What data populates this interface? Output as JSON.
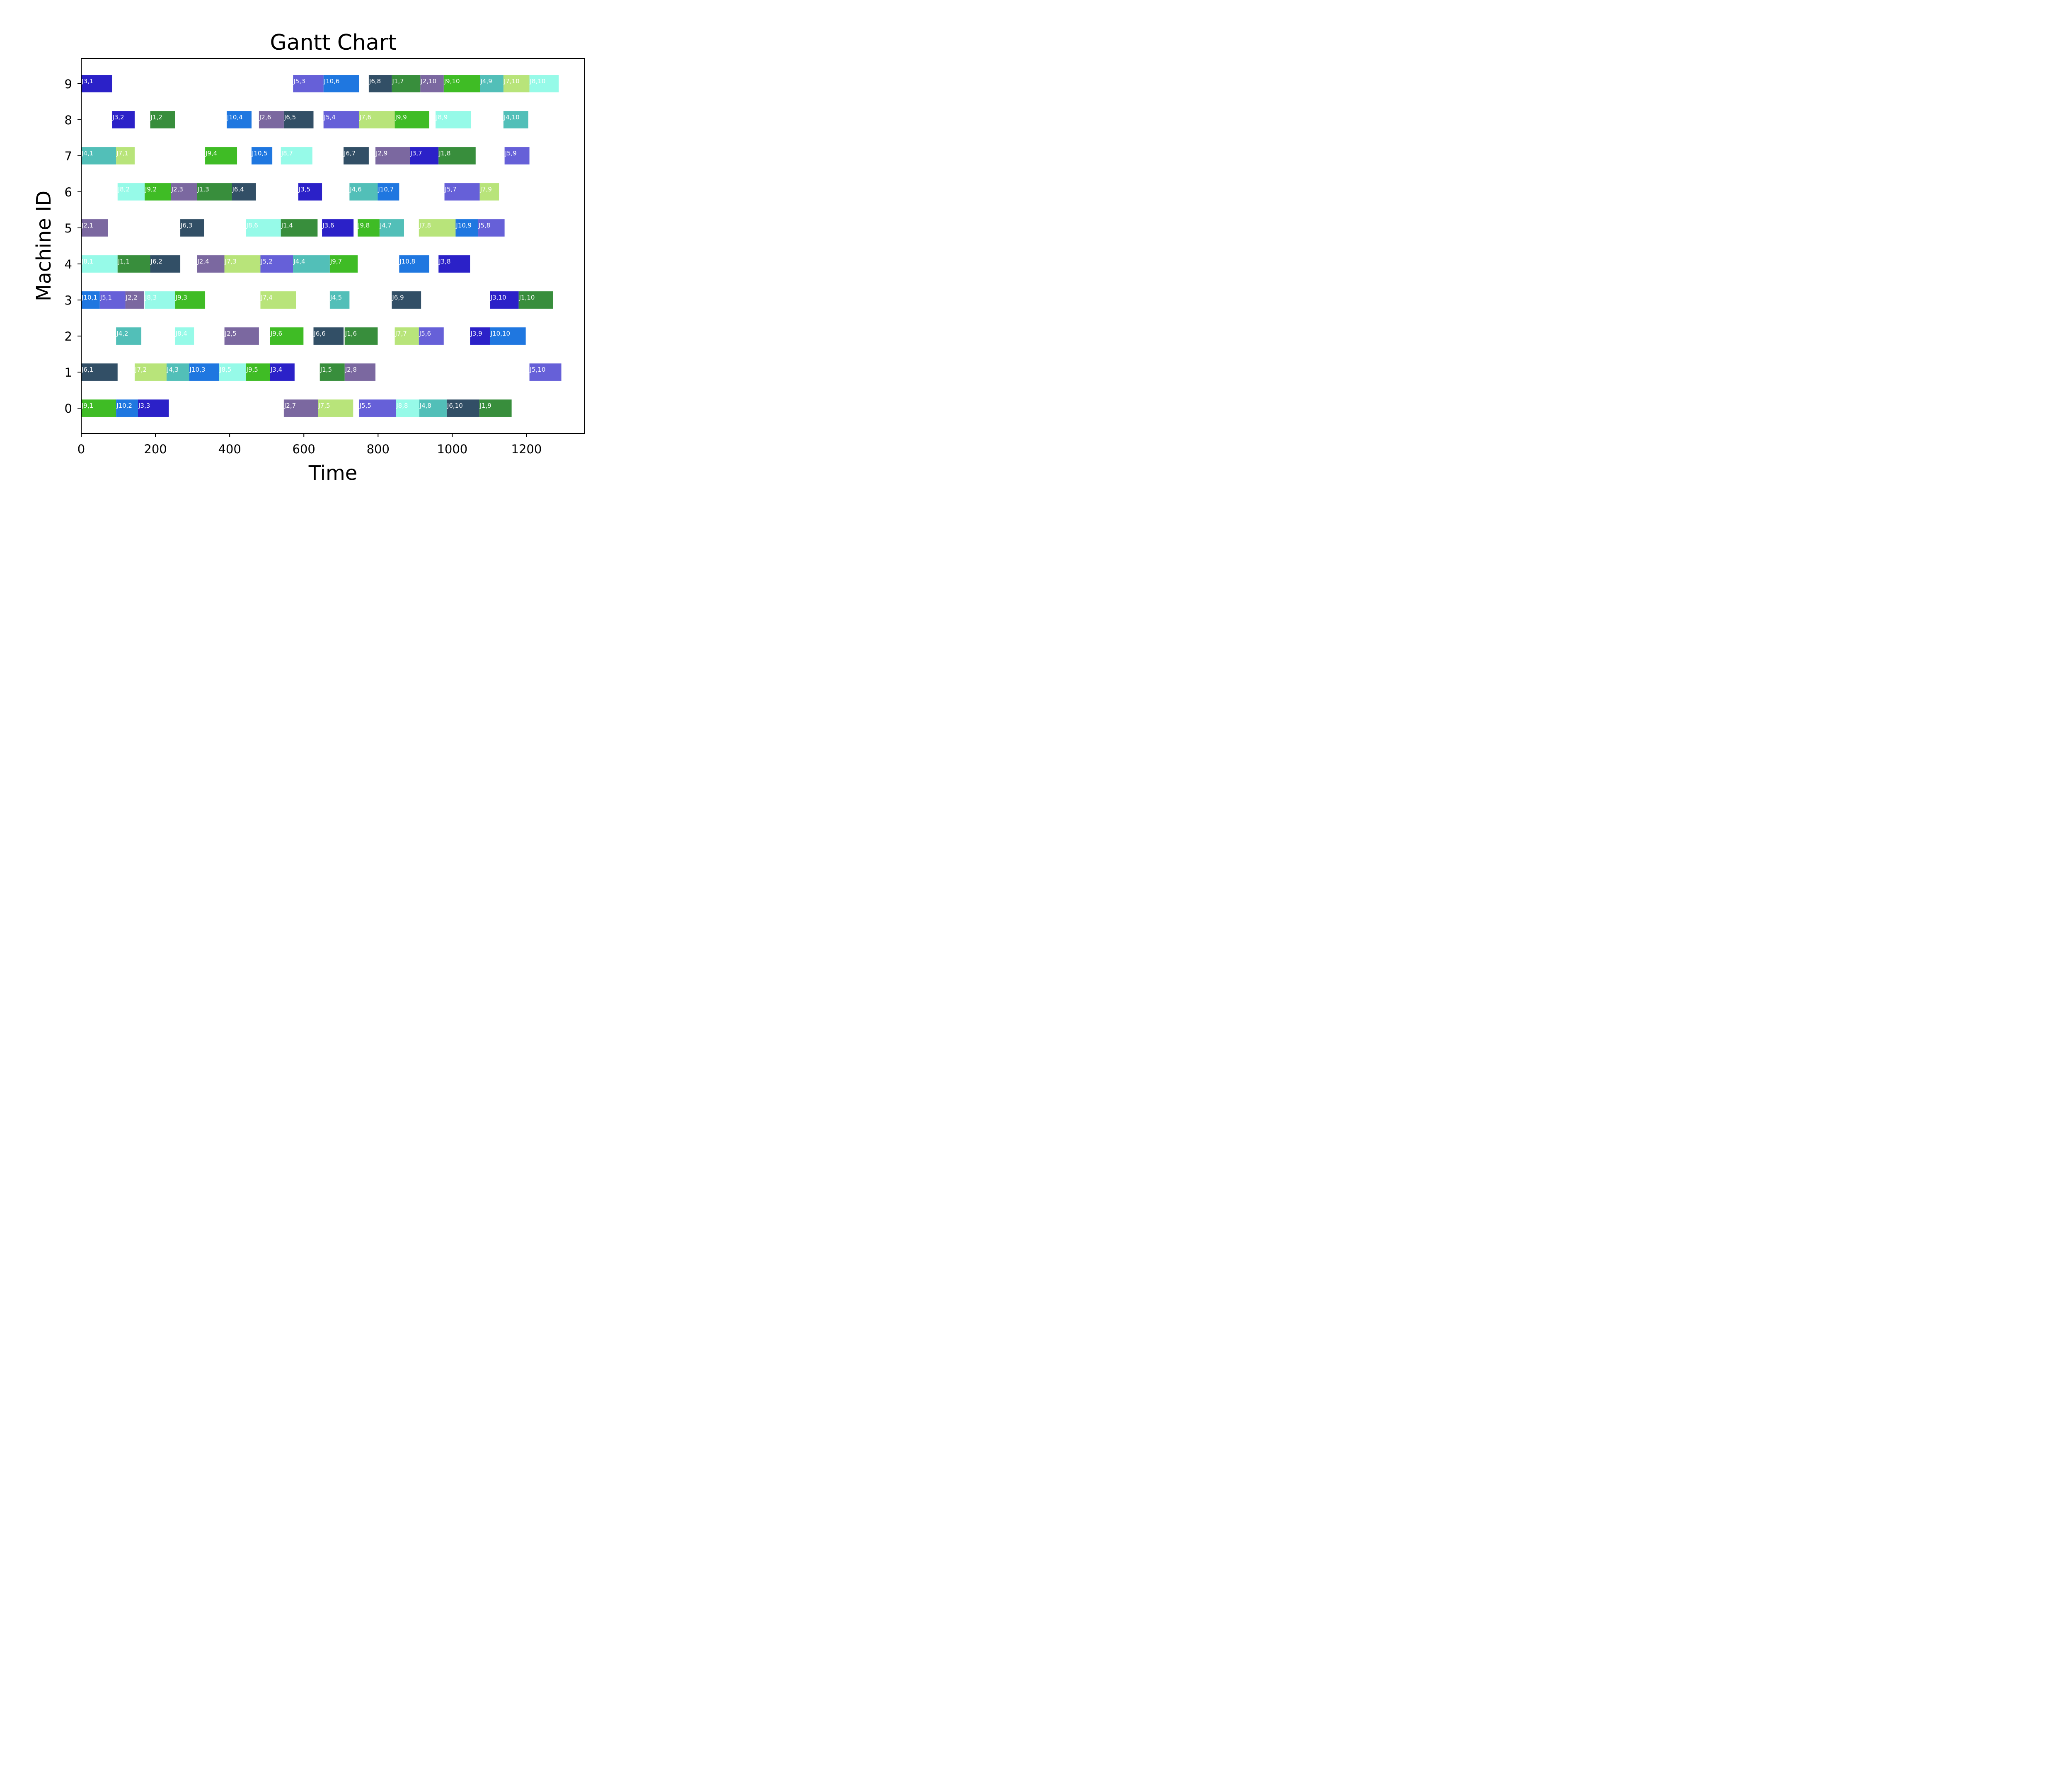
{
  "chart_data": {
    "type": "gantt",
    "title": "Gantt Chart",
    "xlabel": "Time",
    "ylabel": "Machine ID",
    "xlim": [
      0,
      1357
    ],
    "ylim": [
      -0.7,
      9.7
    ],
    "xticks": [
      0,
      200,
      400,
      600,
      800,
      1000,
      1200
    ],
    "yticks": [
      0,
      1,
      2,
      3,
      4,
      5,
      6,
      7,
      8,
      9
    ],
    "grid": false,
    "job_colors": {
      "J1": "#388e3c",
      "J2": "#7b68a0",
      "J3": "#2b21c8",
      "J4": "#52bfb8",
      "J5": "#6660d8",
      "J6": "#324f66",
      "J7": "#b8e47a",
      "J8": "#96fae8",
      "J9": "#3fbc25",
      "J10": "#1f77e0"
    },
    "tasks": [
      {
        "machine": 9,
        "job": "J3",
        "label": "J3,1",
        "start": 0,
        "end": 83
      },
      {
        "machine": 9,
        "job": "J5",
        "label": "J5,3",
        "start": 571,
        "end": 653
      },
      {
        "machine": 9,
        "job": "J10",
        "label": "J10,6",
        "start": 653,
        "end": 749
      },
      {
        "machine": 9,
        "job": "J6",
        "label": "J6,8",
        "start": 775,
        "end": 837
      },
      {
        "machine": 9,
        "job": "J1",
        "label": "J1,7",
        "start": 837,
        "end": 914
      },
      {
        "machine": 9,
        "job": "J2",
        "label": "J2,10",
        "start": 914,
        "end": 977
      },
      {
        "machine": 9,
        "job": "J9",
        "label": "J9,10",
        "start": 977,
        "end": 1075
      },
      {
        "machine": 9,
        "job": "J4",
        "label": "J4,9",
        "start": 1075,
        "end": 1138
      },
      {
        "machine": 9,
        "job": "J7",
        "label": "J7,10",
        "start": 1138,
        "end": 1208
      },
      {
        "machine": 9,
        "job": "J8",
        "label": "J8,10",
        "start": 1208,
        "end": 1287
      },
      {
        "machine": 8,
        "job": "J3",
        "label": "J3,2",
        "start": 83,
        "end": 144
      },
      {
        "machine": 8,
        "job": "J1",
        "label": "J1,2",
        "start": 186,
        "end": 253
      },
      {
        "machine": 8,
        "job": "J10",
        "label": "J10,4",
        "start": 392,
        "end": 459
      },
      {
        "machine": 8,
        "job": "J2",
        "label": "J2,6",
        "start": 479,
        "end": 546
      },
      {
        "machine": 8,
        "job": "J6",
        "label": "J6,5",
        "start": 546,
        "end": 626
      },
      {
        "machine": 8,
        "job": "J5",
        "label": "J5,4",
        "start": 653,
        "end": 749
      },
      {
        "machine": 8,
        "job": "J7",
        "label": "J7,6",
        "start": 749,
        "end": 845
      },
      {
        "machine": 8,
        "job": "J9",
        "label": "J9,9",
        "start": 845,
        "end": 938
      },
      {
        "machine": 8,
        "job": "J8",
        "label": "J8,9",
        "start": 955,
        "end": 1051
      },
      {
        "machine": 8,
        "job": "J4",
        "label": "J4,10",
        "start": 1138,
        "end": 1205
      },
      {
        "machine": 7,
        "job": "J4",
        "label": "J4,1",
        "start": 0,
        "end": 94
      },
      {
        "machine": 7,
        "job": "J7",
        "label": "J7,1",
        "start": 94,
        "end": 144
      },
      {
        "machine": 7,
        "job": "J9",
        "label": "J9,4",
        "start": 334,
        "end": 420
      },
      {
        "machine": 7,
        "job": "J10",
        "label": "J10,5",
        "start": 459,
        "end": 515
      },
      {
        "machine": 7,
        "job": "J8",
        "label": "J8,7",
        "start": 538,
        "end": 623
      },
      {
        "machine": 7,
        "job": "J6",
        "label": "J6,7",
        "start": 707,
        "end": 775
      },
      {
        "machine": 7,
        "job": "J2",
        "label": "J2,9",
        "start": 793,
        "end": 886
      },
      {
        "machine": 7,
        "job": "J3",
        "label": "J3,7",
        "start": 886,
        "end": 963
      },
      {
        "machine": 7,
        "job": "J1",
        "label": "J1,8",
        "start": 963,
        "end": 1063
      },
      {
        "machine": 7,
        "job": "J5",
        "label": "J5,9",
        "start": 1141,
        "end": 1208
      },
      {
        "machine": 6,
        "job": "J8",
        "label": "J8,2",
        "start": 98,
        "end": 171
      },
      {
        "machine": 6,
        "job": "J9",
        "label": "J9,2",
        "start": 171,
        "end": 242
      },
      {
        "machine": 6,
        "job": "J2",
        "label": "J2,3",
        "start": 242,
        "end": 312
      },
      {
        "machine": 6,
        "job": "J1",
        "label": "J1,3",
        "start": 312,
        "end": 406
      },
      {
        "machine": 6,
        "job": "J6",
        "label": "J6,4",
        "start": 406,
        "end": 471
      },
      {
        "machine": 6,
        "job": "J3",
        "label": "J3,5",
        "start": 585,
        "end": 649
      },
      {
        "machine": 6,
        "job": "J4",
        "label": "J4,6",
        "start": 723,
        "end": 799
      },
      {
        "machine": 6,
        "job": "J10",
        "label": "J10,7",
        "start": 799,
        "end": 857
      },
      {
        "machine": 6,
        "job": "J5",
        "label": "J5,7",
        "start": 979,
        "end": 1074
      },
      {
        "machine": 6,
        "job": "J7",
        "label": "J7,9",
        "start": 1074,
        "end": 1126
      },
      {
        "machine": 5,
        "job": "J2",
        "label": "J2,1",
        "start": 0,
        "end": 72
      },
      {
        "machine": 5,
        "job": "J6",
        "label": "J6,3",
        "start": 267,
        "end": 331
      },
      {
        "machine": 5,
        "job": "J8",
        "label": "J8,6",
        "start": 444,
        "end": 538
      },
      {
        "machine": 5,
        "job": "J1",
        "label": "J1,4",
        "start": 538,
        "end": 637
      },
      {
        "machine": 5,
        "job": "J3",
        "label": "J3,6",
        "start": 649,
        "end": 734
      },
      {
        "machine": 5,
        "job": "J9",
        "label": "J9,8",
        "start": 745,
        "end": 804
      },
      {
        "machine": 5,
        "job": "J4",
        "label": "J4,7",
        "start": 804,
        "end": 870
      },
      {
        "machine": 5,
        "job": "J7",
        "label": "J7,8",
        "start": 910,
        "end": 1009
      },
      {
        "machine": 5,
        "job": "J10",
        "label": "J10,9",
        "start": 1009,
        "end": 1070
      },
      {
        "machine": 5,
        "job": "J5",
        "label": "J5,8",
        "start": 1070,
        "end": 1141
      },
      {
        "machine": 4,
        "job": "J8",
        "label": "J8,1",
        "start": 0,
        "end": 98
      },
      {
        "machine": 4,
        "job": "J1",
        "label": "J1,1",
        "start": 98,
        "end": 186
      },
      {
        "machine": 4,
        "job": "J6",
        "label": "J6,2",
        "start": 186,
        "end": 267
      },
      {
        "machine": 4,
        "job": "J2",
        "label": "J2,4",
        "start": 312,
        "end": 386
      },
      {
        "machine": 4,
        "job": "J7",
        "label": "J7,3",
        "start": 386,
        "end": 483
      },
      {
        "machine": 4,
        "job": "J5",
        "label": "J5,2",
        "start": 483,
        "end": 571
      },
      {
        "machine": 4,
        "job": "J4",
        "label": "J4,4",
        "start": 571,
        "end": 670
      },
      {
        "machine": 4,
        "job": "J9",
        "label": "J9,7",
        "start": 670,
        "end": 745
      },
      {
        "machine": 4,
        "job": "J10",
        "label": "J10,8",
        "start": 857,
        "end": 938
      },
      {
        "machine": 4,
        "job": "J3",
        "label": "J3,8",
        "start": 963,
        "end": 1048
      },
      {
        "machine": 3,
        "job": "J10",
        "label": "J10,1",
        "start": 0,
        "end": 50
      },
      {
        "machine": 3,
        "job": "J5",
        "label": "J5,1",
        "start": 50,
        "end": 119
      },
      {
        "machine": 3,
        "job": "J2",
        "label": "J2,2",
        "start": 119,
        "end": 169
      },
      {
        "machine": 3,
        "job": "J8",
        "label": "J8,3",
        "start": 171,
        "end": 253
      },
      {
        "machine": 3,
        "job": "J9",
        "label": "J9,3",
        "start": 253,
        "end": 334
      },
      {
        "machine": 3,
        "job": "J7",
        "label": "J7,4",
        "start": 483,
        "end": 579
      },
      {
        "machine": 3,
        "job": "J4",
        "label": "J4,5",
        "start": 670,
        "end": 723
      },
      {
        "machine": 3,
        "job": "J6",
        "label": "J6,9",
        "start": 837,
        "end": 916
      },
      {
        "machine": 3,
        "job": "J3",
        "label": "J3,10",
        "start": 1102,
        "end": 1179
      },
      {
        "machine": 3,
        "job": "J1",
        "label": "J1,10",
        "start": 1179,
        "end": 1271
      },
      {
        "machine": 2,
        "job": "J4",
        "label": "J4,2",
        "start": 94,
        "end": 162
      },
      {
        "machine": 2,
        "job": "J8",
        "label": "J8,4",
        "start": 253,
        "end": 304
      },
      {
        "machine": 2,
        "job": "J2",
        "label": "J2,5",
        "start": 386,
        "end": 479
      },
      {
        "machine": 2,
        "job": "J9",
        "label": "J9,6",
        "start": 509,
        "end": 599
      },
      {
        "machine": 2,
        "job": "J6",
        "label": "J6,6",
        "start": 626,
        "end": 707
      },
      {
        "machine": 2,
        "job": "J1",
        "label": "J1,6",
        "start": 710,
        "end": 799
      },
      {
        "machine": 2,
        "job": "J7",
        "label": "J7,7",
        "start": 845,
        "end": 910
      },
      {
        "machine": 2,
        "job": "J5",
        "label": "J5,6",
        "start": 910,
        "end": 977
      },
      {
        "machine": 2,
        "job": "J3",
        "label": "J3,9",
        "start": 1048,
        "end": 1102
      },
      {
        "machine": 2,
        "job": "J10",
        "label": "J10,10",
        "start": 1102,
        "end": 1198
      },
      {
        "machine": 1,
        "job": "J6",
        "label": "J6,1",
        "start": 0,
        "end": 98
      },
      {
        "machine": 1,
        "job": "J7",
        "label": "J7,2",
        "start": 144,
        "end": 230
      },
      {
        "machine": 1,
        "job": "J4",
        "label": "J4,3",
        "start": 230,
        "end": 291
      },
      {
        "machine": 1,
        "job": "J10",
        "label": "J10,3",
        "start": 291,
        "end": 372
      },
      {
        "machine": 1,
        "job": "J8",
        "label": "J8,5",
        "start": 372,
        "end": 444
      },
      {
        "machine": 1,
        "job": "J9",
        "label": "J9,5",
        "start": 444,
        "end": 509
      },
      {
        "machine": 1,
        "job": "J3",
        "label": "J3,4",
        "start": 509,
        "end": 575
      },
      {
        "machine": 1,
        "job": "J1",
        "label": "J1,5",
        "start": 643,
        "end": 710
      },
      {
        "machine": 1,
        "job": "J2",
        "label": "J2,8",
        "start": 710,
        "end": 793
      },
      {
        "machine": 1,
        "job": "J5",
        "label": "J5,10",
        "start": 1208,
        "end": 1294
      },
      {
        "machine": 0,
        "job": "J9",
        "label": "J9,1",
        "start": 0,
        "end": 94
      },
      {
        "machine": 0,
        "job": "J10",
        "label": "J10,2",
        "start": 94,
        "end": 153
      },
      {
        "machine": 0,
        "job": "J3",
        "label": "J3,3",
        "start": 153,
        "end": 236
      },
      {
        "machine": 0,
        "job": "J2",
        "label": "J2,7",
        "start": 546,
        "end": 638
      },
      {
        "machine": 0,
        "job": "J7",
        "label": "J7,5",
        "start": 638,
        "end": 733
      },
      {
        "machine": 0,
        "job": "J5",
        "label": "J5,5",
        "start": 749,
        "end": 848
      },
      {
        "machine": 0,
        "job": "J8",
        "label": "J8,8",
        "start": 848,
        "end": 911
      },
      {
        "machine": 0,
        "job": "J4",
        "label": "J4,8",
        "start": 911,
        "end": 985
      },
      {
        "machine": 0,
        "job": "J6",
        "label": "J6,10",
        "start": 985,
        "end": 1073
      },
      {
        "machine": 0,
        "job": "J1",
        "label": "J1,9",
        "start": 1073,
        "end": 1160
      }
    ]
  }
}
